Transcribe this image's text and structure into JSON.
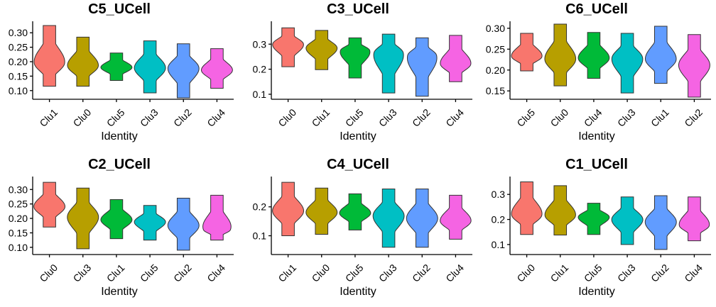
{
  "chart_data": [
    {
      "type": "violin",
      "title": "C5_UCell",
      "xlabel": "Identity",
      "ylabel": "",
      "ylim": [
        0.07,
        0.33
      ],
      "yticks": [
        0.1,
        0.15,
        0.2,
        0.25,
        0.3
      ],
      "groups": [
        {
          "name": "Clu1",
          "color": "#F8766D",
          "min": 0.115,
          "max": 0.325,
          "median": 0.195
        },
        {
          "name": "Clu0",
          "color": "#B79F00",
          "min": 0.115,
          "max": 0.285,
          "median": 0.185
        },
        {
          "name": "Clu5",
          "color": "#00BA38",
          "min": 0.135,
          "max": 0.23,
          "median": 0.18
        },
        {
          "name": "Clu3",
          "color": "#00BFC4",
          "min": 0.092,
          "max": 0.272,
          "median": 0.178
        },
        {
          "name": "Clu2",
          "color": "#619CFF",
          "min": 0.075,
          "max": 0.262,
          "median": 0.178
        },
        {
          "name": "Clu4",
          "color": "#F564E3",
          "min": 0.108,
          "max": 0.245,
          "median": 0.17
        }
      ]
    },
    {
      "type": "violin",
      "title": "C3_UCell",
      "xlabel": "Identity",
      "ylabel": "",
      "ylim": [
        0.08,
        0.38
      ],
      "yticks": [
        0.1,
        0.2,
        0.3
      ],
      "groups": [
        {
          "name": "Clu0",
          "color": "#F8766D",
          "min": 0.21,
          "max": 0.365,
          "median": 0.3
        },
        {
          "name": "Clu1",
          "color": "#B79F00",
          "min": 0.198,
          "max": 0.355,
          "median": 0.285
        },
        {
          "name": "Clu5",
          "color": "#00BA38",
          "min": 0.165,
          "max": 0.325,
          "median": 0.275
        },
        {
          "name": "Clu3",
          "color": "#00BFC4",
          "min": 0.105,
          "max": 0.34,
          "median": 0.265
        },
        {
          "name": "Clu2",
          "color": "#619CFF",
          "min": 0.092,
          "max": 0.325,
          "median": 0.255
        },
        {
          "name": "Clu4",
          "color": "#F564E3",
          "min": 0.15,
          "max": 0.335,
          "median": 0.22
        }
      ]
    },
    {
      "type": "violin",
      "title": "C6_UCell",
      "xlabel": "Identity",
      "ylabel": "",
      "ylim": [
        0.13,
        0.31
      ],
      "yticks": [
        0.15,
        0.2,
        0.25,
        0.3
      ],
      "groups": [
        {
          "name": "Clu5",
          "color": "#F8766D",
          "min": 0.198,
          "max": 0.288,
          "median": 0.232
        },
        {
          "name": "Clu0",
          "color": "#B79F00",
          "min": 0.162,
          "max": 0.31,
          "median": 0.225
        },
        {
          "name": "Clu4",
          "color": "#00BA38",
          "min": 0.18,
          "max": 0.29,
          "median": 0.228
        },
        {
          "name": "Clu3",
          "color": "#00BFC4",
          "min": 0.145,
          "max": 0.288,
          "median": 0.228
        },
        {
          "name": "Clu1",
          "color": "#619CFF",
          "min": 0.168,
          "max": 0.305,
          "median": 0.225
        },
        {
          "name": "Clu2",
          "color": "#F564E3",
          "min": 0.135,
          "max": 0.285,
          "median": 0.212
        }
      ]
    },
    {
      "type": "violin",
      "title": "C2_UCell",
      "xlabel": "Identity",
      "ylabel": "",
      "ylim": [
        0.075,
        0.335
      ],
      "yticks": [
        0.1,
        0.15,
        0.2,
        0.25,
        0.3
      ],
      "groups": [
        {
          "name": "Clu0",
          "color": "#F8766D",
          "min": 0.17,
          "max": 0.325,
          "median": 0.24
        },
        {
          "name": "Clu3",
          "color": "#B79F00",
          "min": 0.095,
          "max": 0.305,
          "median": 0.205
        },
        {
          "name": "Clu1",
          "color": "#00BA38",
          "min": 0.13,
          "max": 0.265,
          "median": 0.195
        },
        {
          "name": "Clu5",
          "color": "#00BFC4",
          "min": 0.125,
          "max": 0.245,
          "median": 0.188
        },
        {
          "name": "Clu2",
          "color": "#619CFF",
          "min": 0.09,
          "max": 0.27,
          "median": 0.175
        },
        {
          "name": "Clu4",
          "color": "#F564E3",
          "min": 0.125,
          "max": 0.28,
          "median": 0.16
        }
      ]
    },
    {
      "type": "violin",
      "title": "C4_UCell",
      "xlabel": "Identity",
      "ylabel": "",
      "ylim": [
        0.035,
        0.295
      ],
      "yticks": [
        0.1,
        0.2
      ],
      "groups": [
        {
          "name": "Clu1",
          "color": "#F8766D",
          "min": 0.1,
          "max": 0.285,
          "median": 0.185
        },
        {
          "name": "Clu0",
          "color": "#B79F00",
          "min": 0.105,
          "max": 0.265,
          "median": 0.18
        },
        {
          "name": "Clu5",
          "color": "#00BA38",
          "min": 0.12,
          "max": 0.245,
          "median": 0.178
        },
        {
          "name": "Clu3",
          "color": "#00BFC4",
          "min": 0.06,
          "max": 0.262,
          "median": 0.17
        },
        {
          "name": "Clu2",
          "color": "#619CFF",
          "min": 0.06,
          "max": 0.262,
          "median": 0.16
        },
        {
          "name": "Clu4",
          "color": "#F564E3",
          "min": 0.088,
          "max": 0.24,
          "median": 0.15
        }
      ]
    },
    {
      "type": "violin",
      "title": "C1_UCell",
      "xlabel": "Identity",
      "ylabel": "",
      "ylim": [
        0.06,
        0.36
      ],
      "yticks": [
        0.1,
        0.2,
        0.3
      ],
      "groups": [
        {
          "name": "Clu0",
          "color": "#F8766D",
          "min": 0.14,
          "max": 0.35,
          "median": 0.218
        },
        {
          "name": "Clu1",
          "color": "#B79F00",
          "min": 0.138,
          "max": 0.335,
          "median": 0.215
        },
        {
          "name": "Clu5",
          "color": "#00BA38",
          "min": 0.14,
          "max": 0.265,
          "median": 0.21
        },
        {
          "name": "Clu3",
          "color": "#00BFC4",
          "min": 0.1,
          "max": 0.29,
          "median": 0.2
        },
        {
          "name": "Clu2",
          "color": "#619CFF",
          "min": 0.08,
          "max": 0.295,
          "median": 0.19
        },
        {
          "name": "Clu4",
          "color": "#F564E3",
          "min": 0.115,
          "max": 0.29,
          "median": 0.175
        }
      ]
    }
  ]
}
